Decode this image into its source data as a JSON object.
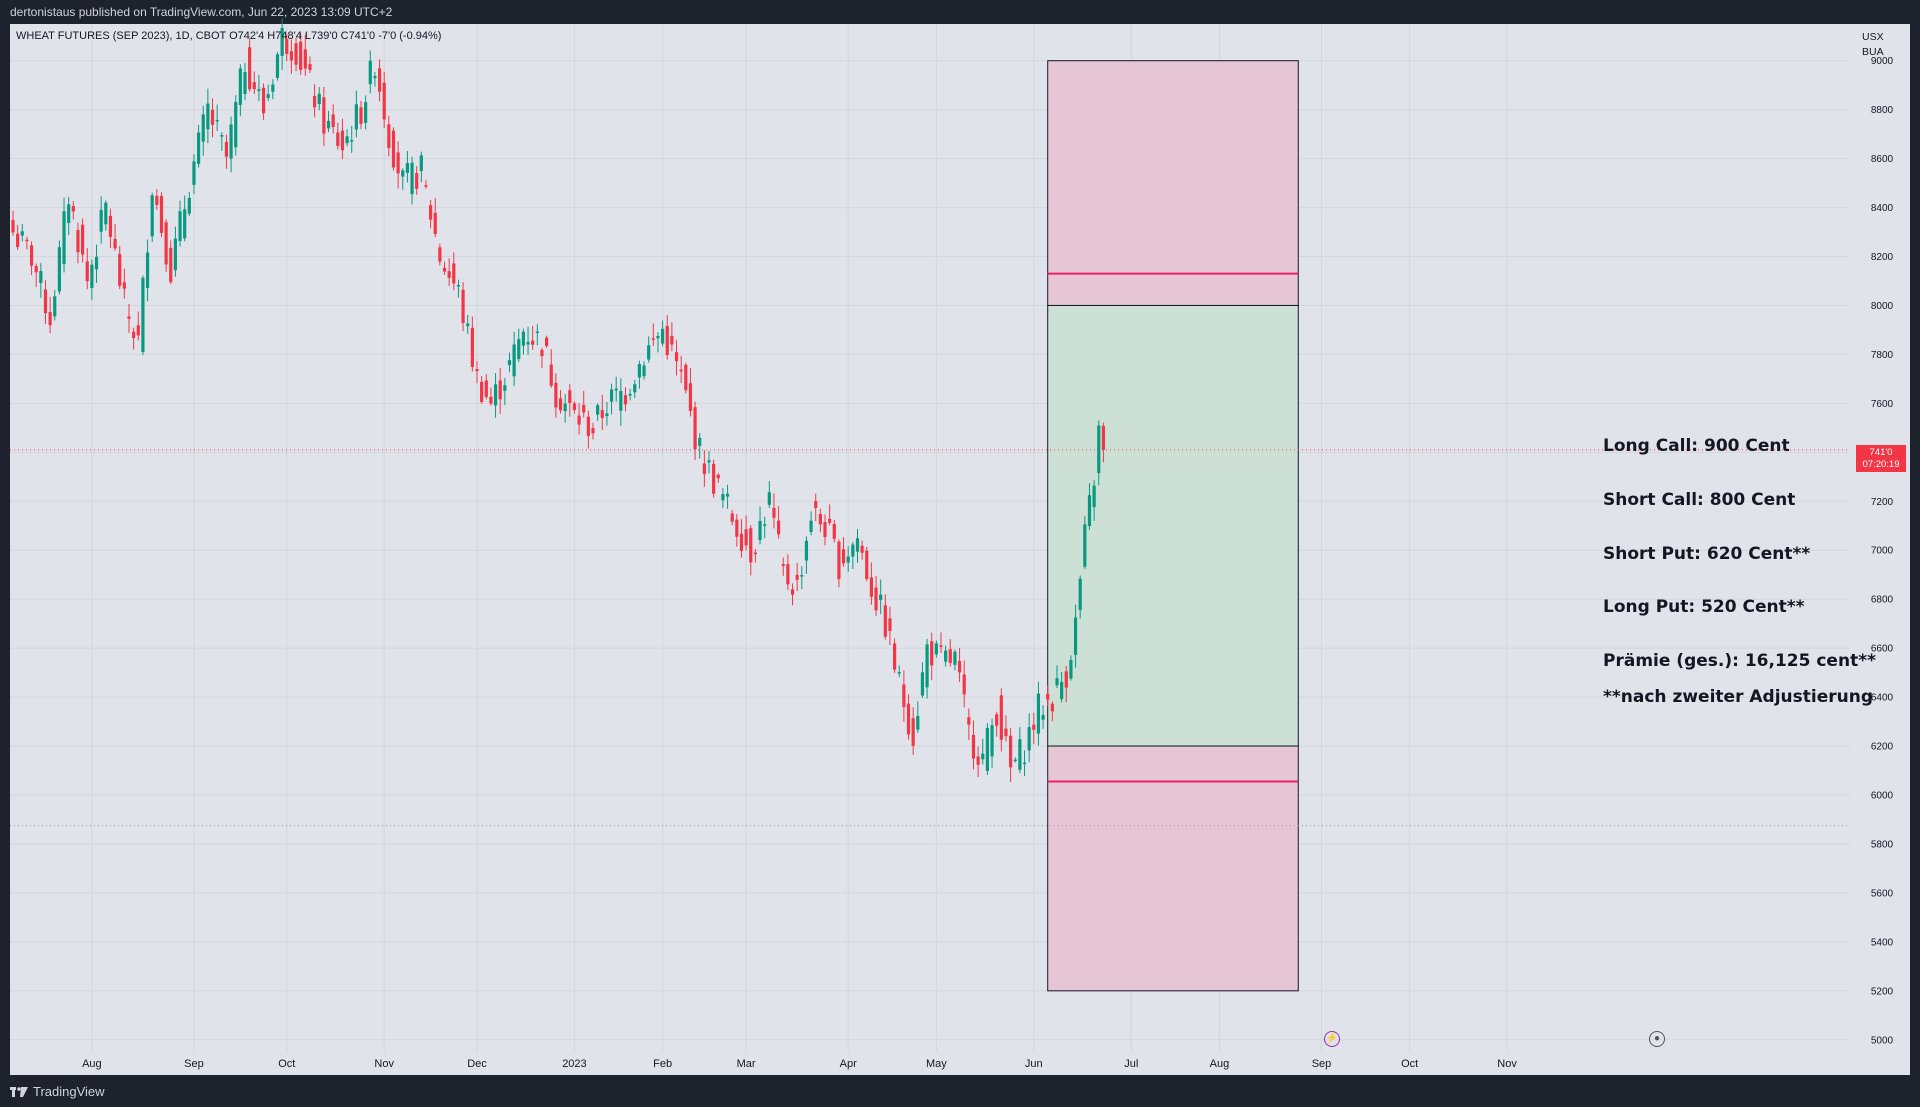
{
  "header": {
    "published": "dertonistaus published on TradingView.com, Jun 22, 2023 13:09 UTC+2"
  },
  "footer": {
    "brand": "TradingView"
  },
  "legend": {
    "text": "WHEAT FUTURES (SEP 2023), 1D, CBOT  O742'4  H748'4  L739'0  C741'0  -7'0 (-0.94%)"
  },
  "axis": {
    "currency": "USX",
    "unit": "BUA"
  },
  "price_badge": {
    "price": "741'0",
    "countdown": "07:20:19"
  },
  "annotations": [
    "Long Call: 900 Cent",
    "Short Call: 800 Cent",
    "Short Put: 620 Cent**",
    "Long Put: 520 Cent**",
    "Prämie (ges.): 16,125 cent**",
    "**nach zweiter Adjustierung"
  ],
  "colors": {
    "up": "#089981",
    "down": "#f23645",
    "profit_zone": "#cde0d5",
    "loss_zone": "#e6c6d4",
    "breakeven_line": "#e91e63"
  },
  "chart_data": {
    "type": "candlestick",
    "ylim": [
      4950,
      9150
    ],
    "yticks": [
      5000,
      5200,
      5400,
      5600,
      5800,
      6000,
      6200,
      6400,
      6600,
      6800,
      7000,
      7200,
      7400,
      7600,
      7800,
      8000,
      8200,
      8400,
      8600,
      8800,
      9000
    ],
    "ytick_labels": [
      "5000",
      "5200",
      "5400",
      "5600",
      "5800",
      "6000",
      "6200",
      "6400",
      "6600",
      "6800",
      "7000",
      "7200",
      "7400",
      "7600",
      "7800",
      "8000",
      "8200",
      "8400",
      "8600",
      "8800",
      "9000"
    ],
    "xlabels": [
      {
        "label": "Aug",
        "index": 17
      },
      {
        "label": "Sep",
        "index": 39
      },
      {
        "label": "Oct",
        "index": 59
      },
      {
        "label": "Nov",
        "index": 80
      },
      {
        "label": "Dec",
        "index": 100
      },
      {
        "label": "2023",
        "index": 121
      },
      {
        "label": "Feb",
        "index": 140
      },
      {
        "label": "Mar",
        "index": 158
      },
      {
        "label": "Apr",
        "index": 180
      },
      {
        "label": "May",
        "index": 199
      },
      {
        "label": "Jun",
        "index": 220
      },
      {
        "label": "Jul",
        "index": 241
      },
      {
        "label": "Aug",
        "index": 260
      },
      {
        "label": "Sep",
        "index": 282
      },
      {
        "label": "Oct",
        "index": 301
      },
      {
        "label": "Nov",
        "index": 322
      }
    ],
    "current_price": 7410,
    "dotted_low": 5875,
    "zones": {
      "x_from_index": 223,
      "x_to_index": 277,
      "long_call": 9000,
      "short_call": 8000,
      "short_put": 6200,
      "long_put": 5200,
      "upper_breakeven": 8130,
      "lower_breakeven": 6055
    },
    "close_anchors": [
      [
        0,
        8300
      ],
      [
        4,
        8200
      ],
      [
        8,
        7950
      ],
      [
        12,
        8450
      ],
      [
        16,
        8100
      ],
      [
        20,
        8400
      ],
      [
        24,
        8000
      ],
      [
        27,
        7850
      ],
      [
        30,
        8500
      ],
      [
        34,
        8150
      ],
      [
        38,
        8500
      ],
      [
        42,
        8800
      ],
      [
        46,
        8600
      ],
      [
        50,
        9000
      ],
      [
        54,
        8800
      ],
      [
        58,
        9100
      ],
      [
        61,
        9050
      ],
      [
        64,
        8900
      ],
      [
        67,
        8750
      ],
      [
        71,
        8650
      ],
      [
        75,
        8800
      ],
      [
        78,
        9000
      ],
      [
        81,
        8700
      ],
      [
        84,
        8500
      ],
      [
        88,
        8550
      ],
      [
        92,
        8200
      ],
      [
        96,
        8050
      ],
      [
        100,
        7700
      ],
      [
        103,
        7600
      ],
      [
        107,
        7750
      ],
      [
        110,
        7900
      ],
      [
        114,
        7850
      ],
      [
        117,
        7650
      ],
      [
        121,
        7550
      ],
      [
        125,
        7500
      ],
      [
        128,
        7600
      ],
      [
        132,
        7650
      ],
      [
        136,
        7800
      ],
      [
        140,
        7900
      ],
      [
        144,
        7700
      ],
      [
        148,
        7400
      ],
      [
        152,
        7250
      ],
      [
        156,
        7100
      ],
      [
        159,
        7000
      ],
      [
        163,
        7200
      ],
      [
        166,
        6900
      ],
      [
        169,
        6850
      ],
      [
        172,
        7150
      ],
      [
        175,
        7100
      ],
      [
        178,
        6950
      ],
      [
        182,
        7050
      ],
      [
        185,
        6850
      ],
      [
        188,
        6700
      ],
      [
        191,
        6450
      ],
      [
        194,
        6250
      ],
      [
        197,
        6600
      ],
      [
        200,
        6550
      ],
      [
        203,
        6550
      ],
      [
        206,
        6250
      ],
      [
        209,
        6150
      ],
      [
        212,
        6350
      ],
      [
        215,
        6100
      ],
      [
        218,
        6200
      ],
      [
        221,
        6350
      ],
      [
        224,
        6400
      ],
      [
        227,
        6500
      ],
      [
        229,
        6700
      ],
      [
        231,
        7050
      ],
      [
        233,
        7300
      ],
      [
        234,
        7480
      ],
      [
        235,
        7410
      ]
    ]
  }
}
